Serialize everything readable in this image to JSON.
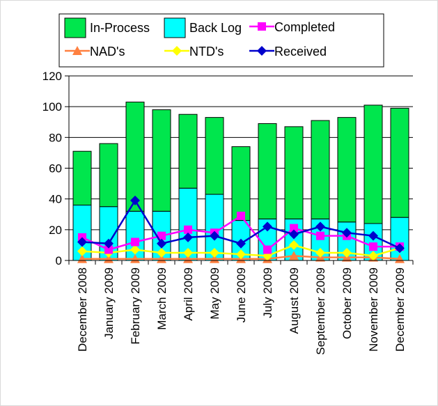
{
  "chart_data": {
    "type": "bar",
    "stacked": true,
    "categories": [
      "December 2008",
      "January 2009",
      "February 2009",
      "March 2009",
      "April 2009",
      "May 2009",
      "June 2009",
      "July 2009",
      "August 2009",
      "September 2009",
      "October 2009",
      "November 2009",
      "December 2009"
    ],
    "ylim": [
      0,
      120
    ],
    "yticks": [
      0,
      20,
      40,
      60,
      80,
      100,
      120
    ],
    "grid": true,
    "legend": "top",
    "bar_series": [
      {
        "name": "Back Log",
        "color": "#00ffff",
        "values": [
          36,
          35,
          32,
          32,
          47,
          43,
          26,
          27,
          27,
          27,
          25,
          24,
          28
        ]
      },
      {
        "name": "In-Process",
        "color": "#00e64d",
        "values": [
          35,
          41,
          71,
          66,
          48,
          50,
          48,
          62,
          60,
          64,
          68,
          77,
          71
        ]
      }
    ],
    "line_series": [
      {
        "name": "Completed",
        "color": "#ff00ff",
        "marker": "square",
        "values": [
          15,
          7,
          12,
          16,
          20,
          18,
          29,
          7,
          21,
          16,
          16,
          9,
          9
        ]
      },
      {
        "name": "NAD's",
        "color": "#ff8040",
        "marker": "triangle",
        "values": [
          1,
          1,
          1,
          1,
          1,
          1,
          1,
          1,
          3,
          2,
          2,
          2,
          1
        ]
      },
      {
        "name": "NTD's",
        "color": "#ffff00",
        "marker": "diamond",
        "values": [
          6,
          5,
          7,
          5,
          5,
          5,
          4,
          3,
          10,
          5,
          5,
          3,
          8
        ]
      },
      {
        "name": "Received",
        "color": "#0000cc",
        "marker": "diamond",
        "values": [
          12,
          11,
          39,
          11,
          15,
          16,
          11,
          22,
          17,
          22,
          18,
          16,
          8
        ]
      }
    ],
    "legend_order": [
      "In-Process",
      "Back Log",
      "Completed",
      "NAD's",
      "NTD's",
      "Received"
    ]
  }
}
